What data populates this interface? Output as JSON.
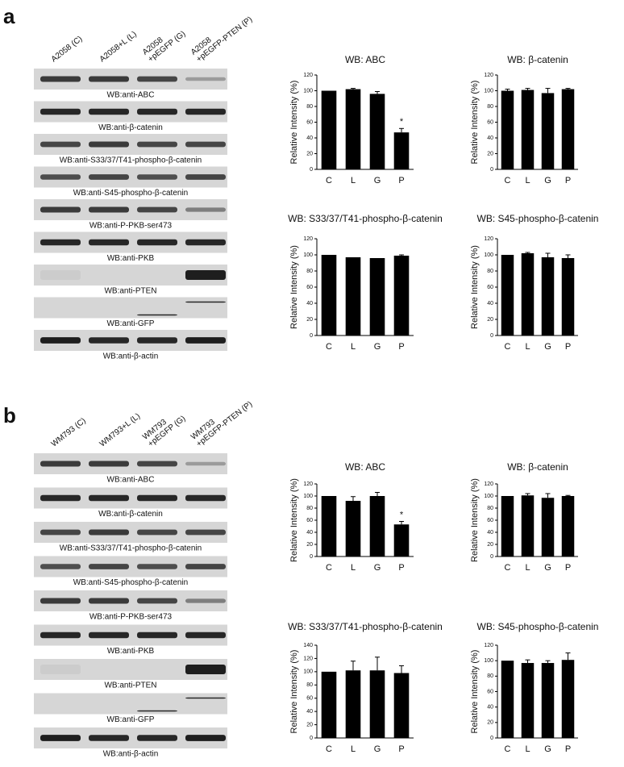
{
  "panels": [
    {
      "letter": "a",
      "lanes": [
        [
          "A2058 (C)"
        ],
        [
          "A2058+L (L)"
        ],
        [
          "A2058",
          "+pEGFP (G)"
        ],
        [
          "A2058",
          "+pEGFP-PTEN (P)"
        ]
      ],
      "blots": [
        "WB:anti-ABC",
        "WB:anti-β-catenin",
        "WB:anti-S33/37/T41-phospho-β-catenin",
        "WB:anti-S45-phospho-β-catenin",
        "WB:anti-P-PKB-ser473",
        "WB:anti-PKB",
        "WB:anti-PTEN",
        "WB:anti-GFP",
        "WB:anti-β-actin"
      ]
    },
    {
      "letter": "b",
      "lanes": [
        [
          "WM793 (C)"
        ],
        [
          "WM793+L (L)"
        ],
        [
          "WM793",
          "+pEGFP (G)"
        ],
        [
          "WM793",
          "+pEGFP-PTEN (P)"
        ]
      ],
      "blots": [
        "WB:anti-ABC",
        "WB:anti-β-catenin",
        "WB:anti-S33/37/T41-phospho-β-catenin",
        "WB:anti-S45-phospho-β-catenin",
        "WB:anti-P-PKB-ser473",
        "WB:anti-PKB",
        "WB:anti-PTEN",
        "WB:anti-GFP",
        "WB:anti-β-actin"
      ]
    }
  ],
  "chart_data": [
    {
      "type": "bar",
      "title": "WB: ABC",
      "ylabel": "Relative Intensity (%)",
      "categories": [
        "C",
        "L",
        "G",
        "P"
      ],
      "values": [
        100,
        102,
        96,
        47
      ],
      "errors": [
        0,
        1,
        3,
        5
      ],
      "annotations": [
        {
          "text": "*",
          "category": "P"
        }
      ],
      "color": "#000000",
      "ylim": [
        0,
        120
      ],
      "yticks": [
        0,
        20,
        40,
        60,
        80,
        100,
        120
      ]
    },
    {
      "type": "bar",
      "title": "WB: β-catenin",
      "ylabel": "Relative Intensity (%)",
      "categories": [
        "C",
        "L",
        "G",
        "P"
      ],
      "values": [
        100,
        101,
        97,
        102
      ],
      "errors": [
        2,
        2,
        6,
        1
      ],
      "color": "#000000",
      "ylim": [
        0,
        120
      ],
      "yticks": [
        0,
        20,
        40,
        60,
        80,
        100,
        120
      ]
    },
    {
      "type": "bar",
      "title": "WB: S33/37/T41-phospho-β-catenin",
      "ylabel": "Relative Intensity (%)",
      "categories": [
        "C",
        "L",
        "G",
        "P"
      ],
      "values": [
        100,
        97,
        96,
        99
      ],
      "errors": [
        0,
        0,
        0,
        1
      ],
      "color": "#000000",
      "ylim": [
        0,
        120
      ],
      "yticks": [
        0,
        20,
        40,
        60,
        80,
        100,
        120
      ]
    },
    {
      "type": "bar",
      "title": "WB: S45-phospho-β-catenin",
      "ylabel": "Relative Intensity (%)",
      "categories": [
        "C",
        "L",
        "G",
        "P"
      ],
      "values": [
        100,
        102,
        97,
        96
      ],
      "errors": [
        0,
        1,
        5,
        4
      ],
      "color": "#000000",
      "ylim": [
        0,
        120
      ],
      "yticks": [
        0,
        20,
        40,
        60,
        80,
        100,
        120
      ]
    },
    {
      "type": "bar",
      "title": "WB: ABC",
      "ylabel": "Relative Intensity (%)",
      "categories": [
        "C",
        "L",
        "G",
        "P"
      ],
      "values": [
        100,
        92,
        100,
        53
      ],
      "errors": [
        0,
        7,
        6,
        5
      ],
      "annotations": [
        {
          "text": "*",
          "category": "P"
        }
      ],
      "color": "#000000",
      "ylim": [
        0,
        120
      ],
      "yticks": [
        0,
        20,
        40,
        60,
        80,
        100,
        120
      ]
    },
    {
      "type": "bar",
      "title": "WB: β-catenin",
      "ylabel": "Relative Intensity (%)",
      "categories": [
        "C",
        "L",
        "G",
        "P"
      ],
      "values": [
        100,
        101,
        97,
        100
      ],
      "errors": [
        0,
        3,
        7,
        1
      ],
      "color": "#000000",
      "ylim": [
        0,
        120
      ],
      "yticks": [
        0,
        20,
        40,
        60,
        80,
        100,
        120
      ]
    },
    {
      "type": "bar",
      "title": "WB: S33/37/T41-phospho-β-catenin",
      "ylabel": "Relative Intensity (%)",
      "categories": [
        "C",
        "L",
        "G",
        "P"
      ],
      "values": [
        100,
        102,
        102,
        98
      ],
      "errors": [
        0,
        14,
        20,
        11
      ],
      "color": "#000000",
      "ylim": [
        0,
        140
      ],
      "yticks": [
        0,
        20,
        40,
        60,
        80,
        100,
        120,
        140
      ]
    },
    {
      "type": "bar",
      "title": "WB: S45-phospho-β-catenin",
      "ylabel": "Relative Intensity (%)",
      "categories": [
        "C",
        "L",
        "G",
        "P"
      ],
      "values": [
        100,
        97,
        97,
        101
      ],
      "errors": [
        0,
        4,
        3,
        9
      ],
      "color": "#000000",
      "ylim": [
        0,
        120
      ],
      "yticks": [
        0,
        20,
        40,
        60,
        80,
        100,
        120
      ]
    }
  ]
}
